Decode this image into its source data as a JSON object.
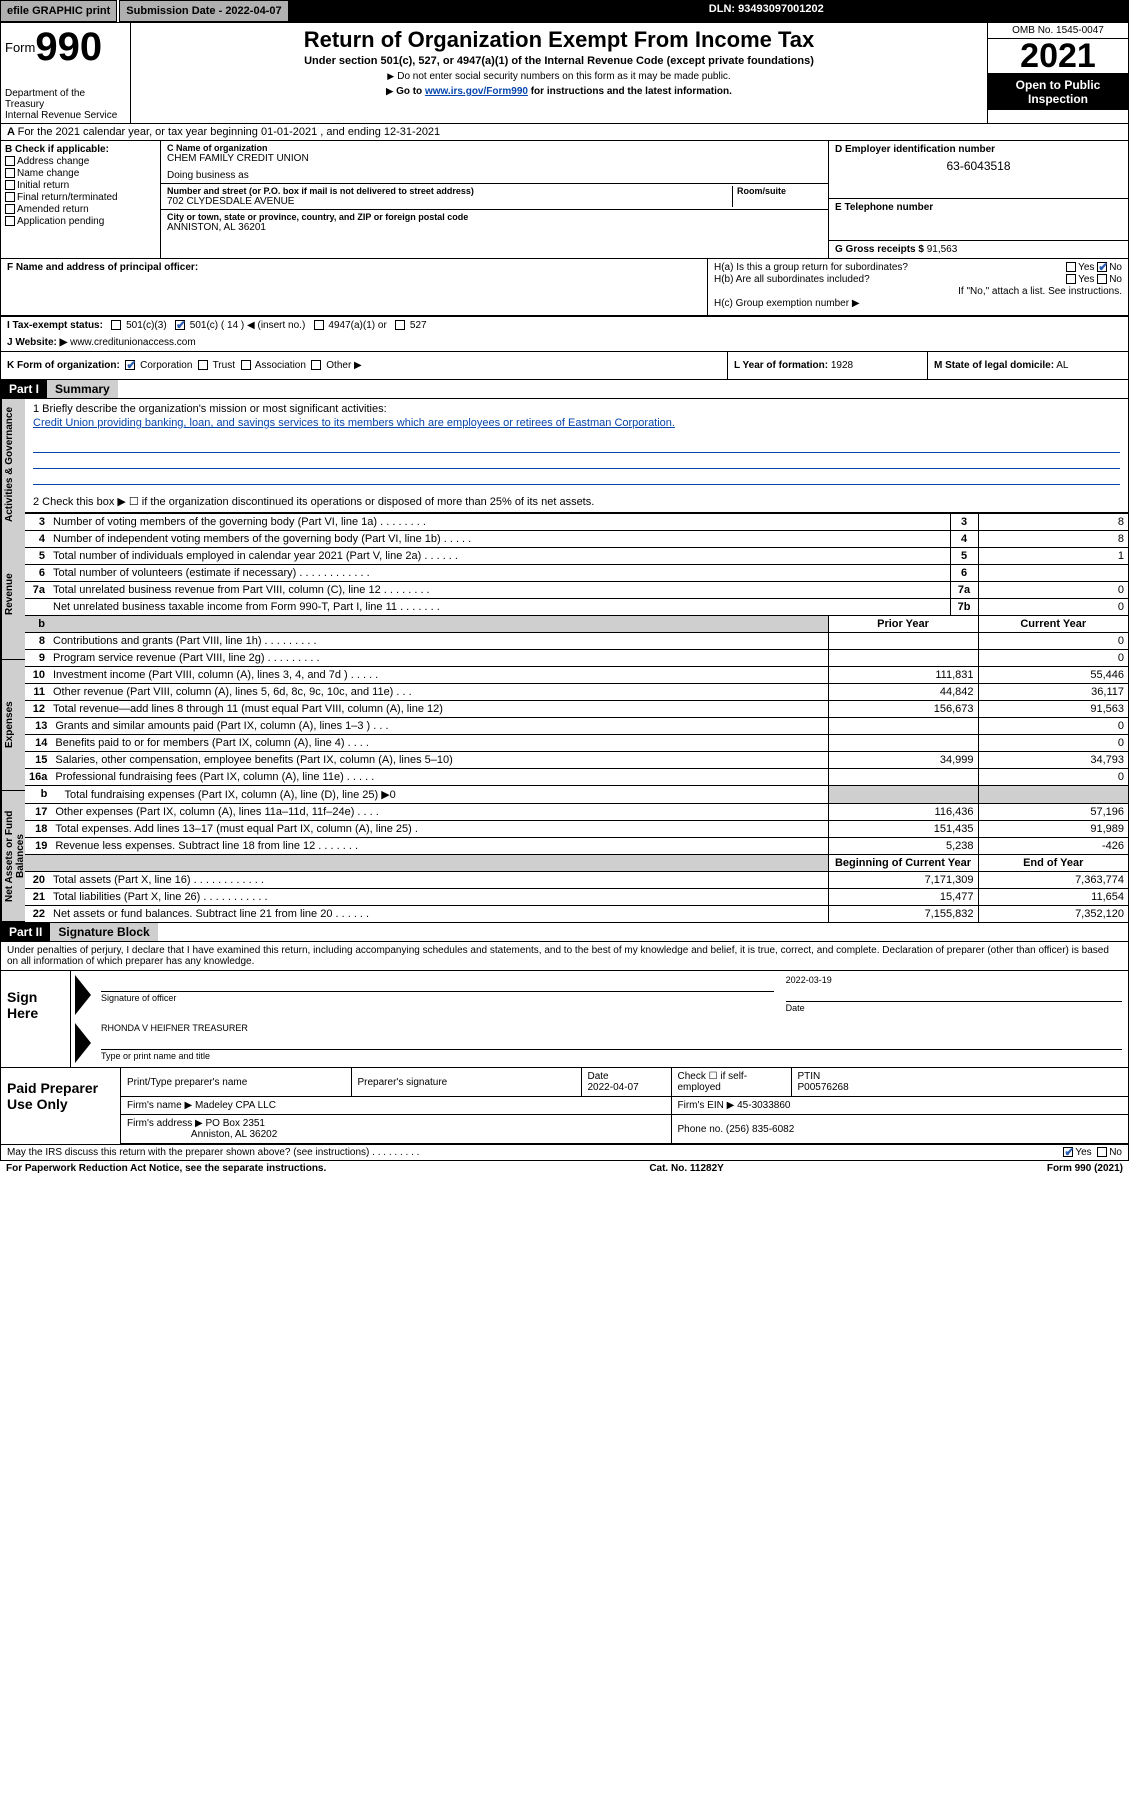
{
  "topbar": {
    "efile_label": "efile GRAPHIC print",
    "submission_label": "Submission Date - 2022-04-07",
    "dln_label": "DLN: 93493097001202"
  },
  "header": {
    "form_prefix": "Form",
    "form_number": "990",
    "title": "Return of Organization Exempt From Income Tax",
    "subtitle": "Under section 501(c), 527, or 4947(a)(1) of the Internal Revenue Code (except private foundations)",
    "note1": "Do not enter social security numbers on this form as it may be made public.",
    "note2_prefix": "Go to ",
    "note2_link": "www.irs.gov/Form990",
    "note2_suffix": " for instructions and the latest information.",
    "dept": "Department of the Treasury\nInternal Revenue Service",
    "omb": "OMB No. 1545-0047",
    "year": "2021",
    "open": "Open to Public Inspection"
  },
  "line_a": "For the 2021 calendar year, or tax year beginning 01-01-2021   , and ending 12-31-2021",
  "box_b": {
    "header": "B Check if applicable:",
    "items": [
      "Address change",
      "Name change",
      "Initial return",
      "Final return/terminated",
      "Amended return",
      "Application pending"
    ]
  },
  "box_c": {
    "name_label": "C Name of organization",
    "name": "CHEM FAMILY CREDIT UNION",
    "dba_label": "Doing business as",
    "dba": "",
    "street_label": "Number and street (or P.O. box if mail is not delivered to street address)",
    "room_label": "Room/suite",
    "street": "702 CLYDESDALE AVENUE",
    "city_label": "City or town, state or province, country, and ZIP or foreign postal code",
    "city": "ANNISTON, AL  36201"
  },
  "box_d": {
    "label": "D Employer identification number",
    "value": "63-6043518"
  },
  "box_e": {
    "label": "E Telephone number",
    "value": ""
  },
  "box_g": {
    "label": "G Gross receipts $",
    "value": "91,563"
  },
  "box_f": {
    "label": "F  Name and address of principal officer:",
    "value": ""
  },
  "box_h": {
    "ha": "H(a)  Is this a group return for subordinates?",
    "hb": "H(b)  Are all subordinates included?",
    "hb_note": "If \"No,\" attach a list. See instructions.",
    "hc": "H(c)  Group exemption number ▶",
    "yes": "Yes",
    "no": "No"
  },
  "line_i": {
    "label": "I   Tax-exempt status:",
    "opts": [
      "501(c)(3)",
      "501(c) ( 14 ) ◀ (insert no.)",
      "4947(a)(1) or",
      "527"
    ]
  },
  "line_j": {
    "label": "J   Website: ▶",
    "value": "www.creditunionaccess.com"
  },
  "line_k": {
    "label": "K Form of organization:",
    "opts": [
      "Corporation",
      "Trust",
      "Association",
      "Other ▶"
    ]
  },
  "line_l": {
    "label": "L Year of formation:",
    "value": "1928"
  },
  "line_m": {
    "label": "M State of legal domicile:",
    "value": "AL"
  },
  "part1": {
    "header": "Part I",
    "title": "Summary"
  },
  "mission": {
    "line1_label": "1   Briefly describe the organization's mission or most significant activities:",
    "line1_text": "Credit Union providing banking, loan, and savings services to its members which are employees or retirees of Eastman Corporation.",
    "line2": "2    Check this box ▶ ☐  if the organization discontinued its operations or disposed of more than 25% of its net assets."
  },
  "vtabs": [
    "Activities & Governance",
    "Revenue",
    "Expenses",
    "Net Assets or Fund Balances"
  ],
  "cols": {
    "prior": "Prior Year",
    "current": "Current Year",
    "begin": "Beginning of Current Year",
    "end": "End of Year"
  },
  "rows_gov": [
    {
      "n": "3",
      "t": "Number of voting members of the governing body (Part VI, line 1a)   .    .    .    .    .    .    .    .",
      "box": "3",
      "v": "8"
    },
    {
      "n": "4",
      "t": "Number of independent voting members of the governing body (Part VI, line 1b)  .    .    .    .    .",
      "box": "4",
      "v": "8"
    },
    {
      "n": "5",
      "t": "Total number of individuals employed in calendar year 2021 (Part V, line 2a)  .    .    .    .    .    .",
      "box": "5",
      "v": "1"
    },
    {
      "n": "6",
      "t": "Total number of volunteers (estimate if necessary)   .    .    .    .    .    .    .    .    .    .    .    .",
      "box": "6",
      "v": ""
    },
    {
      "n": "7a",
      "t": "Total unrelated business revenue from Part VIII, column (C), line 12  .    .    .    .    .    .    .    .",
      "box": "7a",
      "v": "0"
    },
    {
      "n": "",
      "t": "Net unrelated business taxable income from Form 990-T, Part I, line 11   .    .    .    .    .    .    .",
      "box": "7b",
      "v": "0"
    }
  ],
  "rows_rev": [
    {
      "n": "8",
      "t": "Contributions and grants (Part VIII, line 1h)   .    .    .    .    .    .    .    .    .",
      "p": "",
      "c": "0"
    },
    {
      "n": "9",
      "t": "Program service revenue (Part VIII, line 2g)   .    .    .    .    .    .    .    .    .",
      "p": "",
      "c": "0"
    },
    {
      "n": "10",
      "t": "Investment income (Part VIII, column (A), lines 3, 4, and 7d )   .    .    .    .    .",
      "p": "111,831",
      "c": "55,446"
    },
    {
      "n": "11",
      "t": "Other revenue (Part VIII, column (A), lines 5, 6d, 8c, 9c, 10c, and 11e)   .    .    .",
      "p": "44,842",
      "c": "36,117"
    },
    {
      "n": "12",
      "t": "Total revenue—add lines 8 through 11 (must equal Part VIII, column (A), line 12)",
      "p": "156,673",
      "c": "91,563"
    }
  ],
  "rows_exp": [
    {
      "n": "13",
      "t": "Grants and similar amounts paid (Part IX, column (A), lines 1–3 )   .    .    .",
      "p": "",
      "c": "0"
    },
    {
      "n": "14",
      "t": "Benefits paid to or for members (Part IX, column (A), line 4)   .    .    .    .",
      "p": "",
      "c": "0"
    },
    {
      "n": "15",
      "t": "Salaries, other compensation, employee benefits (Part IX, column (A), lines 5–10)",
      "p": "34,999",
      "c": "34,793"
    },
    {
      "n": "16a",
      "t": "Professional fundraising fees (Part IX, column (A), line 11e)   .    .    .    .    .",
      "p": "",
      "c": "0"
    },
    {
      "n": "b",
      "t": "Total fundraising expenses (Part IX, column (A), line (D), line 25) ▶0",
      "p": "SHADE",
      "c": "SHADE",
      "indent": true
    },
    {
      "n": "17",
      "t": "Other expenses (Part IX, column (A), lines 11a–11d, 11f–24e)   .    .    .    .",
      "p": "116,436",
      "c": "57,196"
    },
    {
      "n": "18",
      "t": "Total expenses. Add lines 13–17 (must equal Part IX, column (A), line 25)   .",
      "p": "151,435",
      "c": "91,989"
    },
    {
      "n": "19",
      "t": "Revenue less expenses. Subtract line 18 from line 12   .    .    .    .    .    .    .",
      "p": "5,238",
      "c": "-426"
    }
  ],
  "rows_net": [
    {
      "n": "20",
      "t": "Total assets (Part X, line 16)   .    .    .    .    .    .    .    .    .    .    .    .",
      "p": "7,171,309",
      "c": "7,363,774"
    },
    {
      "n": "21",
      "t": "Total liabilities (Part X, line 26)   .    .    .    .    .    .    .    .    .    .    .",
      "p": "15,477",
      "c": "11,654"
    },
    {
      "n": "22",
      "t": "Net assets or fund balances. Subtract line 21 from line 20   .    .    .    .    .    .",
      "p": "7,155,832",
      "c": "7,352,120"
    }
  ],
  "part2": {
    "header": "Part II",
    "title": "Signature Block"
  },
  "penalties": "Under penalties of perjury, I declare that I have examined this return, including accompanying schedules and statements, and to the best of my knowledge and belief, it is true, correct, and complete. Declaration of preparer (other than officer) is based on all information of which preparer has any knowledge.",
  "sign": {
    "left": "Sign Here",
    "sig_label": "Signature of officer",
    "date_label": "Date",
    "date": "2022-03-19",
    "name": "RHONDA V HEIFNER  TREASURER",
    "name_label": "Type or print name and title"
  },
  "paid": {
    "left": "Paid Preparer Use Only",
    "h1": "Print/Type preparer's name",
    "h2": "Preparer's signature",
    "h3": "Date",
    "date": "2022-04-07",
    "h4": "Check ☐ if self-employed",
    "h5": "PTIN",
    "ptin": "P00576268",
    "firm_name_lbl": "Firm's name    ▶",
    "firm_name": "Madeley CPA LLC",
    "firm_ein_lbl": "Firm's EIN ▶",
    "firm_ein": "45-3033860",
    "firm_addr_lbl": "Firm's address ▶",
    "firm_addr1": "PO Box 2351",
    "firm_addr2": "Anniston, AL  36202",
    "phone_lbl": "Phone no.",
    "phone": "(256) 835-6082"
  },
  "discuss": {
    "text": "May the IRS discuss this return with the preparer shown above? (see instructions)   .    .    .    .    .    .    .    .    .",
    "yes": "Yes",
    "no": "No"
  },
  "footer": {
    "left": "For Paperwork Reduction Act Notice, see the separate instructions.",
    "mid": "Cat. No. 11282Y",
    "right": "Form 990 (2021)"
  }
}
